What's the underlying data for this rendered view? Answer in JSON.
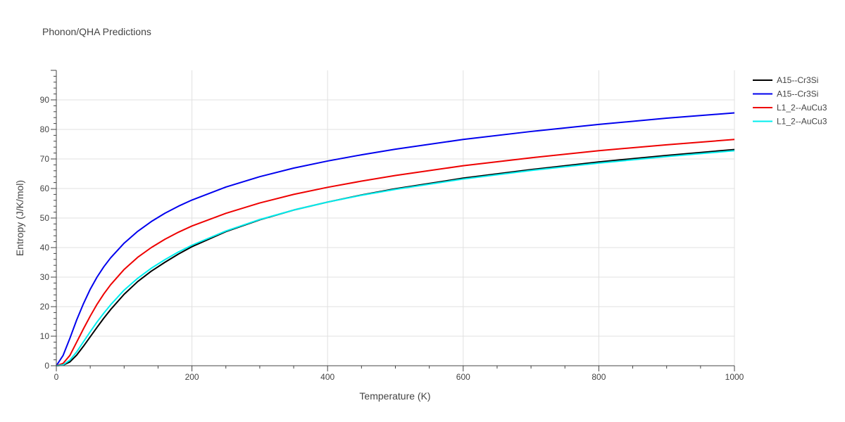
{
  "chart_data": {
    "type": "line",
    "title": "Phonon/QHA Predictions",
    "xlabel": "Temperature (K)",
    "ylabel": "Entropy (J/K/mol)",
    "xlim": [
      0,
      1000
    ],
    "ylim": [
      0,
      100
    ],
    "x_ticks": [
      0,
      200,
      400,
      600,
      800,
      1000
    ],
    "y_ticks": [
      0,
      10,
      20,
      30,
      40,
      50,
      60,
      70,
      80,
      90
    ],
    "grid": true,
    "legend_position": "top-right",
    "x": [
      0,
      10,
      20,
      30,
      40,
      50,
      60,
      70,
      80,
      100,
      120,
      140,
      160,
      180,
      200,
      250,
      300,
      350,
      400,
      450,
      500,
      600,
      700,
      800,
      900,
      1000
    ],
    "series": [
      {
        "name": "A15--Cr3Si",
        "color": "#000000",
        "values": [
          0,
          0.2,
          1.3,
          3.6,
          6.6,
          9.8,
          13.0,
          16.1,
          19.0,
          24.2,
          28.5,
          32.0,
          35.0,
          37.8,
          40.3,
          45.4,
          49.4,
          52.7,
          55.4,
          57.8,
          59.9,
          63.5,
          66.4,
          69.0,
          71.2,
          73.2
        ]
      },
      {
        "name": "A15--Cr3Si",
        "color": "#0000ee",
        "values": [
          0,
          3.5,
          9.3,
          15.5,
          21.0,
          25.9,
          30.0,
          33.5,
          36.5,
          41.5,
          45.5,
          48.8,
          51.6,
          54.0,
          56.1,
          60.5,
          64.0,
          66.9,
          69.3,
          71.4,
          73.3,
          76.6,
          79.3,
          81.7,
          83.8,
          85.6
        ]
      },
      {
        "name": "L1_2--AuCu3",
        "color": "#ee0000",
        "values": [
          0,
          0.8,
          3.5,
          8.0,
          12.5,
          16.8,
          20.8,
          24.3,
          27.4,
          32.6,
          36.7,
          40.0,
          42.8,
          45.2,
          47.3,
          51.6,
          55.1,
          58.0,
          60.4,
          62.5,
          64.4,
          67.7,
          70.4,
          72.8,
          74.8,
          76.6
        ]
      },
      {
        "name": "L1_2--AuCu3",
        "color": "#00eeee",
        "values": [
          0,
          0.3,
          1.9,
          4.7,
          8.1,
          11.5,
          14.8,
          17.8,
          20.6,
          25.6,
          29.6,
          33.0,
          35.9,
          38.5,
          40.8,
          45.6,
          49.5,
          52.7,
          55.4,
          57.7,
          59.7,
          63.2,
          66.1,
          68.6,
          70.8,
          72.8
        ]
      }
    ]
  }
}
